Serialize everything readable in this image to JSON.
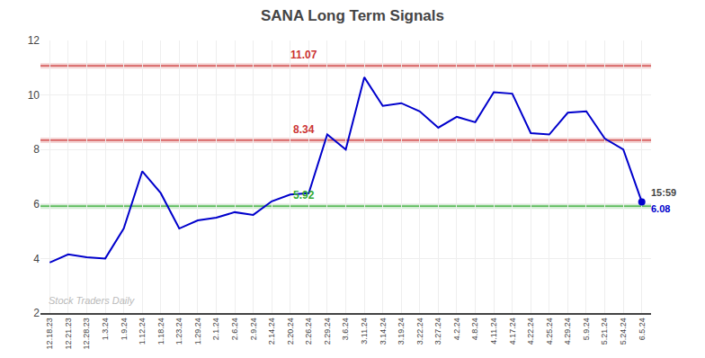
{
  "chart_data": {
    "type": "line",
    "title": "SANA Long Term Signals",
    "categories": [
      "12.18.23",
      "12.21.23",
      "12.28.23",
      "1.3.24",
      "1.9.24",
      "1.12.24",
      "1.18.24",
      "1.23.24",
      "1.29.24",
      "2.1.24",
      "2.6.24",
      "2.9.24",
      "2.14.24",
      "2.20.24",
      "2.26.24",
      "2.29.24",
      "3.6.24",
      "3.11.24",
      "3.14.24",
      "3.19.24",
      "3.22.24",
      "3.27.24",
      "4.2.24",
      "4.8.24",
      "4.11.24",
      "4.17.24",
      "4.22.24",
      "4.25.24",
      "4.29.24",
      "5.9.24",
      "5.21.24",
      "5.24.24",
      "6.5.24"
    ],
    "values": [
      3.85,
      4.15,
      4.05,
      4.0,
      5.1,
      7.2,
      6.4,
      5.1,
      5.4,
      5.5,
      5.7,
      5.6,
      6.1,
      6.35,
      6.4,
      8.55,
      8.0,
      10.65,
      9.6,
      9.7,
      9.4,
      8.8,
      9.2,
      9.0,
      10.1,
      10.05,
      8.6,
      8.55,
      9.35,
      9.4,
      8.4,
      8.0,
      6.08
    ],
    "color": "#0000cc",
    "ylim": [
      2,
      12
    ],
    "yticks": [
      2,
      4,
      6,
      8,
      10,
      12
    ],
    "grid": true,
    "hlines": [
      {
        "value": 11.07,
        "label": "11.07",
        "color": "#cc3333"
      },
      {
        "value": 8.34,
        "label": "8.34",
        "color": "#cc3333"
      },
      {
        "value": 5.92,
        "label": "5.92",
        "color": "#33aa33"
      }
    ],
    "last_point": {
      "value": 6.08,
      "labels": [
        "15:59",
        "6.08"
      ]
    },
    "watermark": {
      "text": "Stock Traders Daily",
      "color": "#aaaaaa"
    }
  }
}
